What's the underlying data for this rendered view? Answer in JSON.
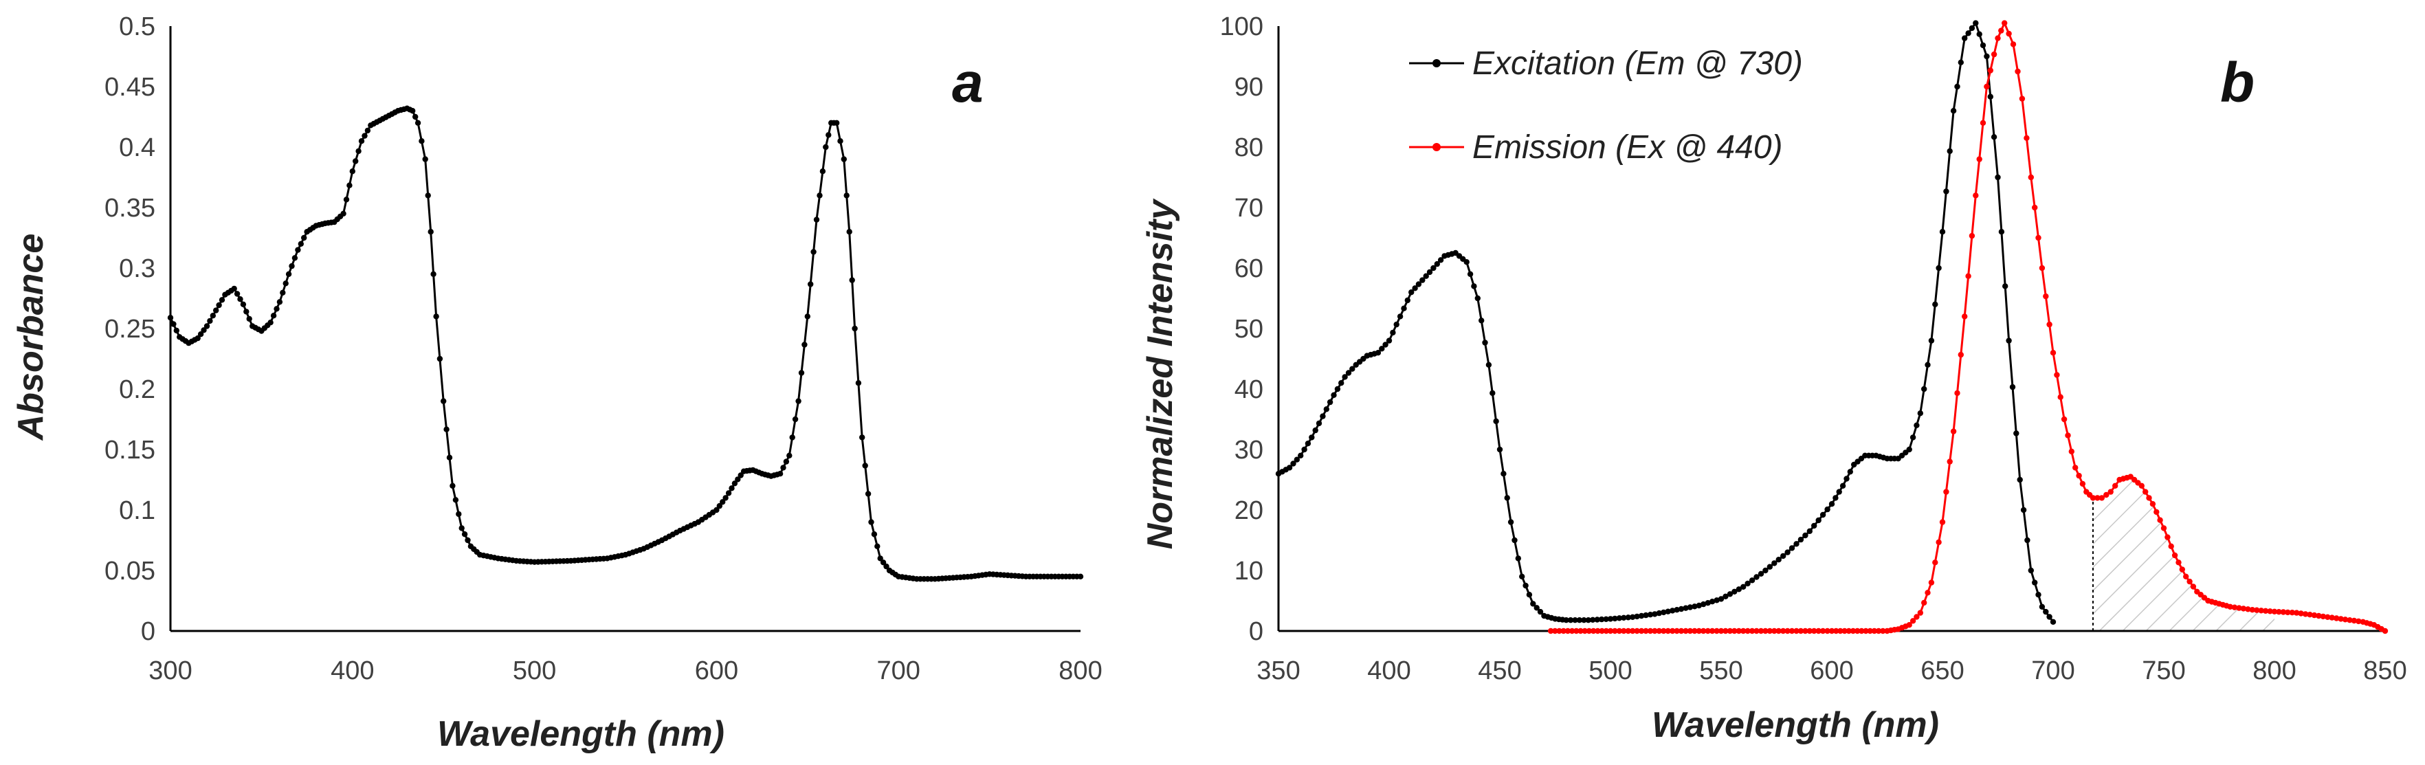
{
  "chart_data": [
    {
      "type": "line",
      "panel_label": "a",
      "title": "",
      "xlabel": "Wavelength  (nm)",
      "ylabel": "Absorbance",
      "xlim": [
        300,
        800
      ],
      "ylim": [
        0,
        0.5
      ],
      "x_ticks": [
        300,
        400,
        500,
        600,
        700,
        800
      ],
      "y_ticks": [
        0,
        0.05,
        0.1,
        0.15,
        0.2,
        0.25,
        0.3,
        0.35,
        0.4,
        0.45,
        0.5
      ],
      "color": "#000000",
      "series": [
        {
          "name": "Absorbance",
          "x": [
            300,
            305,
            310,
            315,
            320,
            325,
            330,
            335,
            340,
            345,
            350,
            355,
            360,
            365,
            370,
            375,
            380,
            385,
            390,
            395,
            400,
            405,
            410,
            415,
            420,
            425,
            430,
            433,
            436,
            440,
            443,
            446,
            450,
            455,
            460,
            465,
            470,
            480,
            490,
            500,
            520,
            540,
            550,
            560,
            570,
            580,
            590,
            600,
            605,
            610,
            615,
            620,
            625,
            630,
            635,
            640,
            645,
            650,
            655,
            660,
            663,
            666,
            670,
            673,
            676,
            680,
            685,
            690,
            695,
            700,
            710,
            720,
            730,
            740,
            750,
            760,
            770,
            780,
            790,
            800
          ],
          "values": [
            0.259,
            0.243,
            0.238,
            0.242,
            0.252,
            0.265,
            0.278,
            0.283,
            0.27,
            0.252,
            0.248,
            0.255,
            0.272,
            0.295,
            0.315,
            0.33,
            0.335,
            0.337,
            0.338,
            0.345,
            0.38,
            0.405,
            0.418,
            0.422,
            0.426,
            0.43,
            0.432,
            0.43,
            0.42,
            0.39,
            0.33,
            0.26,
            0.19,
            0.12,
            0.085,
            0.07,
            0.063,
            0.06,
            0.058,
            0.057,
            0.058,
            0.06,
            0.063,
            0.068,
            0.075,
            0.083,
            0.09,
            0.1,
            0.11,
            0.122,
            0.132,
            0.133,
            0.13,
            0.128,
            0.13,
            0.145,
            0.19,
            0.26,
            0.34,
            0.4,
            0.42,
            0.42,
            0.39,
            0.33,
            0.25,
            0.16,
            0.09,
            0.06,
            0.05,
            0.045,
            0.043,
            0.043,
            0.044,
            0.045,
            0.047,
            0.046,
            0.045,
            0.045,
            0.045,
            0.045
          ]
        }
      ]
    },
    {
      "type": "line",
      "panel_label": "b",
      "title": "",
      "xlabel": "Wavelength  (nm)",
      "ylabel": "Normalized  Intensity",
      "xlim": [
        350,
        850
      ],
      "ylim": [
        0,
        100
      ],
      "x_ticks": [
        350,
        400,
        450,
        500,
        550,
        600,
        650,
        700,
        750,
        800,
        850
      ],
      "y_ticks": [
        0,
        10,
        20,
        30,
        40,
        50,
        60,
        70,
        80,
        90,
        100
      ],
      "legend_position": "top-left",
      "shaded_region": {
        "x_start": 718,
        "x_end": 800,
        "pattern": "hatched"
      },
      "series": [
        {
          "name": "Excitation (Em @ 730)",
          "color": "#000000",
          "x": [
            350,
            355,
            360,
            365,
            370,
            375,
            380,
            385,
            390,
            395,
            400,
            405,
            410,
            415,
            420,
            425,
            430,
            435,
            440,
            445,
            450,
            455,
            460,
            465,
            470,
            475,
            480,
            490,
            500,
            510,
            520,
            530,
            540,
            550,
            560,
            570,
            580,
            590,
            600,
            605,
            610,
            615,
            620,
            625,
            630,
            635,
            640,
            645,
            650,
            655,
            660,
            665,
            670,
            675,
            680,
            685,
            690,
            695,
            700
          ],
          "values": [
            26,
            27,
            29,
            32,
            35.5,
            39,
            42,
            44,
            45.5,
            46,
            48,
            52,
            56,
            58,
            60,
            62,
            62.5,
            61,
            55,
            44,
            30,
            18,
            9,
            4.5,
            2.5,
            2,
            1.8,
            1.8,
            2,
            2.3,
            2.8,
            3.5,
            4.2,
            5.3,
            7.3,
            10,
            13,
            16.5,
            21,
            24,
            27.5,
            29,
            29,
            28.5,
            28.5,
            30,
            36,
            48,
            66,
            86,
            98,
            100.5,
            95,
            75,
            48,
            25,
            10,
            4,
            1.5
          ]
        },
        {
          "name": "Emission (Ex @ 440)",
          "color": "#ff0000",
          "x": [
            473,
            500,
            550,
            600,
            625,
            630,
            635,
            640,
            645,
            650,
            655,
            660,
            665,
            670,
            675,
            678,
            682,
            686,
            690,
            695,
            700,
            705,
            710,
            715,
            718,
            722,
            726,
            730,
            735,
            740,
            745,
            750,
            755,
            760,
            765,
            770,
            775,
            780,
            790,
            800,
            810,
            820,
            830,
            840,
            845,
            850
          ],
          "values": [
            0,
            0,
            0,
            0,
            0,
            0.3,
            1,
            3,
            8,
            18,
            33,
            52,
            72,
            90,
            98,
            100.5,
            97,
            88,
            75,
            60,
            46,
            35,
            27,
            23,
            22,
            22,
            23,
            25,
            25.5,
            24,
            21,
            17,
            12.5,
            9,
            6.5,
            5,
            4.5,
            4,
            3.5,
            3.2,
            3,
            2.5,
            2,
            1.5,
            1,
            0
          ]
        }
      ]
    }
  ]
}
